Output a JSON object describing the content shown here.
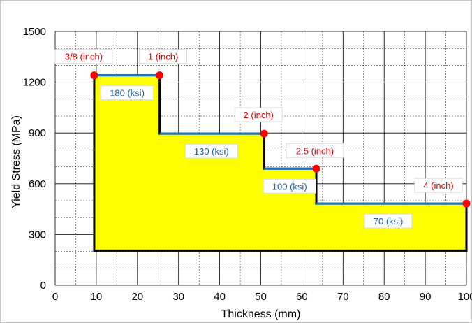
{
  "chart_data": {
    "type": "area",
    "xlabel": "Thickness (mm)",
    "ylabel": "Yield Stress (MPa)",
    "xlim": [
      0,
      100
    ],
    "ylim": [
      0,
      1500
    ],
    "x_ticks": [
      "0",
      "10",
      "20",
      "30",
      "40",
      "50",
      "60",
      "70",
      "80",
      "90",
      "100"
    ],
    "y_ticks": [
      "0",
      "300",
      "600",
      "900",
      "1200",
      "1500"
    ],
    "grid": true,
    "fill_color": "#ffff00",
    "step_line_color": "#1f77c4",
    "outline_color": "#000000",
    "marker_color": "#ff0000",
    "baseline": 205,
    "series": [
      {
        "steps": [
          {
            "x_start": 9.5,
            "x_end": 25.4,
            "y": 1241
          },
          {
            "x_start": 25.4,
            "x_end": 50.8,
            "y": 896
          },
          {
            "x_start": 50.8,
            "x_end": 63.5,
            "y": 689
          },
          {
            "x_start": 63.5,
            "x_end": 100,
            "y": 483
          }
        ]
      }
    ],
    "points": [
      {
        "x": 9.5,
        "y": 1241
      },
      {
        "x": 25.4,
        "y": 1241
      },
      {
        "x": 50.8,
        "y": 896
      },
      {
        "x": 63.5,
        "y": 689
      },
      {
        "x": 100,
        "y": 483
      }
    ],
    "annotations_thickness": [
      {
        "text": "3/8 (inch)",
        "x": 9.5,
        "y": 1241
      },
      {
        "text": "1 (inch)",
        "x": 25.4,
        "y": 1241
      },
      {
        "text": "2 (inch)",
        "x": 50.8,
        "y": 896
      },
      {
        "text": "2.5 (inch)",
        "x": 63.5,
        "y": 689
      },
      {
        "text": "4 (inch)",
        "x": 100,
        "y": 483
      }
    ],
    "annotations_stress": [
      {
        "text": "180 (ksi)",
        "x": 17.5,
        "y": 1241
      },
      {
        "text": "130 (ksi)",
        "x": 38,
        "y": 896
      },
      {
        "text": "100 (ksi)",
        "x": 57,
        "y": 689
      },
      {
        "text": "70 (ksi)",
        "x": 81,
        "y": 483
      }
    ]
  }
}
